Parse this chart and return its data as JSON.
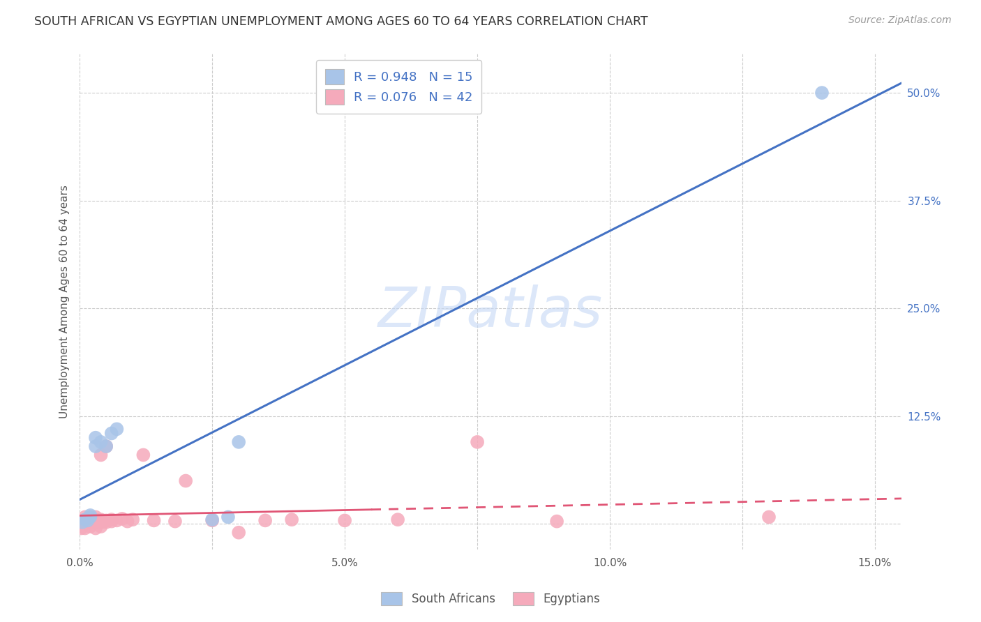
{
  "title": "SOUTH AFRICAN VS EGYPTIAN UNEMPLOYMENT AMONG AGES 60 TO 64 YEARS CORRELATION CHART",
  "source": "Source: ZipAtlas.com",
  "ylabel": "Unemployment Among Ages 60 to 64 years",
  "xlim": [
    0.0,
    0.155
  ],
  "ylim": [
    -0.03,
    0.545
  ],
  "xtick_positions": [
    0.0,
    0.025,
    0.05,
    0.075,
    0.1,
    0.125,
    0.15
  ],
  "xtick_labels": [
    "0.0%",
    "",
    "5.0%",
    "",
    "10.0%",
    "",
    "15.0%"
  ],
  "ytick_positions": [
    0.0,
    0.125,
    0.25,
    0.375,
    0.5
  ],
  "ytick_labels": [
    "",
    "12.5%",
    "25.0%",
    "37.5%",
    "50.0%"
  ],
  "background_color": "#ffffff",
  "grid_color": "#cccccc",
  "sa_color": "#a8c4e8",
  "eg_color": "#f5aabb",
  "sa_line_color": "#4472c4",
  "eg_line_color": "#e05575",
  "watermark": "ZIPatlas",
  "sa_R": 0.948,
  "sa_N": 15,
  "eg_R": 0.076,
  "eg_N": 42,
  "sa_x": [
    0.0005,
    0.001,
    0.0015,
    0.002,
    0.002,
    0.003,
    0.003,
    0.004,
    0.005,
    0.006,
    0.007,
    0.025,
    0.028,
    0.03,
    0.14
  ],
  "sa_y": [
    0.002,
    0.005,
    0.004,
    0.008,
    0.01,
    0.09,
    0.1,
    0.095,
    0.09,
    0.105,
    0.11,
    0.005,
    0.008,
    0.095,
    0.5
  ],
  "eg_x": [
    0.0003,
    0.0005,
    0.0007,
    0.001,
    0.001,
    0.001,
    0.001,
    0.0015,
    0.002,
    0.002,
    0.002,
    0.002,
    0.003,
    0.003,
    0.003,
    0.003,
    0.004,
    0.004,
    0.004,
    0.004,
    0.005,
    0.005,
    0.005,
    0.006,
    0.006,
    0.007,
    0.008,
    0.009,
    0.01,
    0.012,
    0.014,
    0.018,
    0.02,
    0.025,
    0.03,
    0.035,
    0.04,
    0.05,
    0.06,
    0.075,
    0.09,
    0.13
  ],
  "eg_y": [
    -0.005,
    0.003,
    0.002,
    -0.005,
    0.002,
    0.004,
    0.008,
    0.003,
    -0.003,
    0.002,
    0.004,
    0.008,
    -0.005,
    0.002,
    0.005,
    0.008,
    -0.003,
    0.002,
    0.005,
    0.08,
    0.002,
    0.004,
    0.09,
    0.003,
    0.005,
    0.004,
    0.006,
    0.003,
    0.005,
    0.08,
    0.004,
    0.003,
    0.05,
    0.004,
    -0.01,
    0.004,
    0.005,
    0.004,
    0.005,
    0.095,
    0.003,
    0.008
  ]
}
